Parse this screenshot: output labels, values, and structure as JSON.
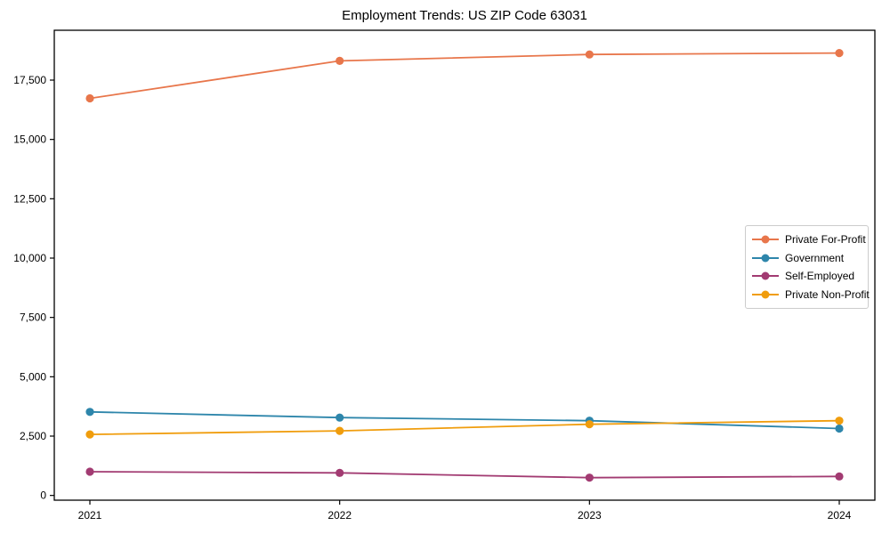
{
  "chart_data": {
    "type": "line",
    "title": "Employment Trends: US ZIP Code 63031",
    "categories": [
      "2021",
      "2022",
      "2023",
      "2024"
    ],
    "series": [
      {
        "name": "Private For-Profit",
        "color": "#E8764B",
        "values": [
          16730,
          18310,
          18580,
          18640
        ]
      },
      {
        "name": "Government",
        "color": "#2E86AB",
        "values": [
          3520,
          3280,
          3150,
          2820
        ]
      },
      {
        "name": "Self-Employed",
        "color": "#A23B72",
        "values": [
          1000,
          950,
          750,
          800
        ]
      },
      {
        "name": "Private Non-Profit",
        "color": "#F09D0D",
        "values": [
          2570,
          2720,
          3000,
          3150
        ]
      }
    ],
    "y_ticks": [
      0,
      2500,
      5000,
      7500,
      10000,
      12500,
      15000,
      17500
    ],
    "ylim": [
      -200,
      19600
    ],
    "xlabel": "",
    "ylabel": "",
    "grid": false,
    "legend_position": "right-inside",
    "axis_color": "#000000",
    "background_color": "#ffffff"
  }
}
